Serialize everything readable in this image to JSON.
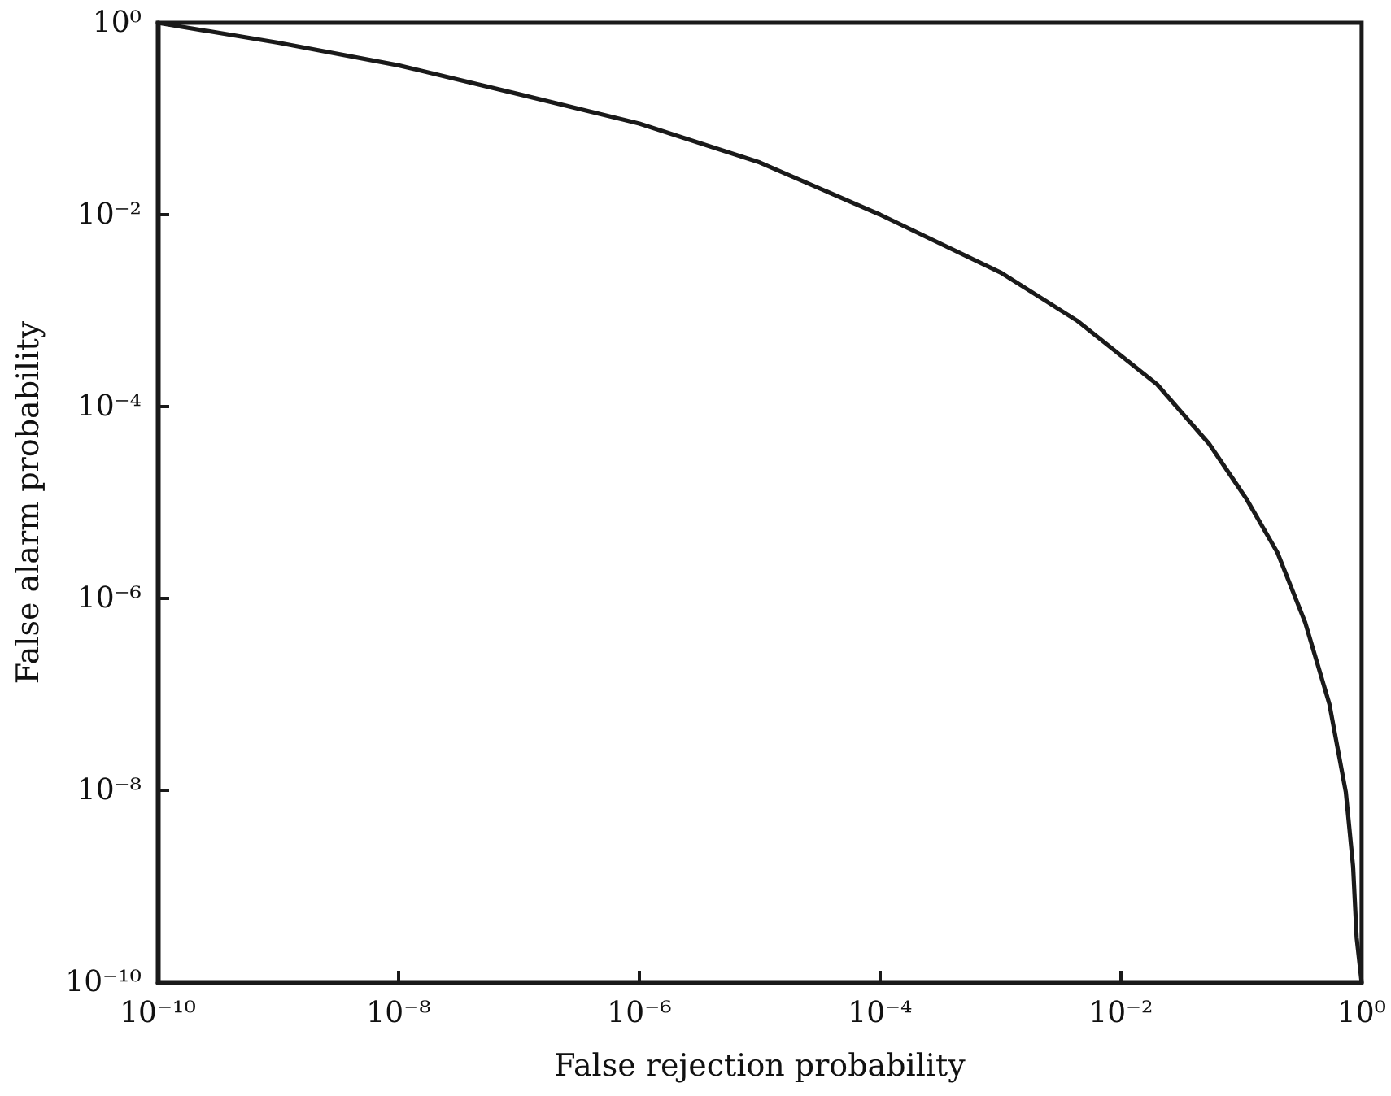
{
  "chart_data": {
    "type": "line",
    "xlabel": "False rejection probability",
    "ylabel": "False alarm probability",
    "log": "xy",
    "grid": false,
    "marker": "none",
    "line_style": "solid",
    "xlim": [
      1e-10,
      1
    ],
    "ylim": [
      1e-10,
      1
    ],
    "xticks": [
      {
        "value": 1e-10,
        "label": "10⁻¹⁰"
      },
      {
        "value": 1e-08,
        "label": "10⁻⁸"
      },
      {
        "value": 1e-06,
        "label": "10⁻⁶"
      },
      {
        "value": 0.0001,
        "label": "10⁻⁴"
      },
      {
        "value": 0.01,
        "label": "10⁻²"
      },
      {
        "value": 1,
        "label": "10⁰"
      }
    ],
    "yticks": [
      {
        "value": 1e-10,
        "label": "10⁻¹⁰"
      },
      {
        "value": 1e-08,
        "label": "10⁻⁸"
      },
      {
        "value": 1e-06,
        "label": "10⁻⁶"
      },
      {
        "value": 0.0001,
        "label": "10⁻⁴"
      },
      {
        "value": 0.01,
        "label": "10⁻²"
      },
      {
        "value": 1,
        "label": "10⁰"
      }
    ],
    "series": [
      {
        "color": "#1a1a1a",
        "x": [
          1e-10,
          1e-09,
          1e-08,
          1e-07,
          1e-06,
          1e-05,
          0.0001,
          0.001,
          0.0043,
          0.02,
          0.054,
          0.11,
          0.2,
          0.34,
          0.54,
          0.74,
          0.85,
          0.91,
          1
        ],
        "values": [
          1,
          0.62,
          0.36,
          0.18,
          0.089,
          0.035,
          0.01,
          0.0025,
          0.00079,
          0.00017,
          4.1e-05,
          1.1e-05,
          3e-06,
          5.6e-07,
          7.9e-08,
          9.5e-09,
          1.6e-09,
          2.9e-10,
          1e-10
        ]
      }
    ]
  }
}
